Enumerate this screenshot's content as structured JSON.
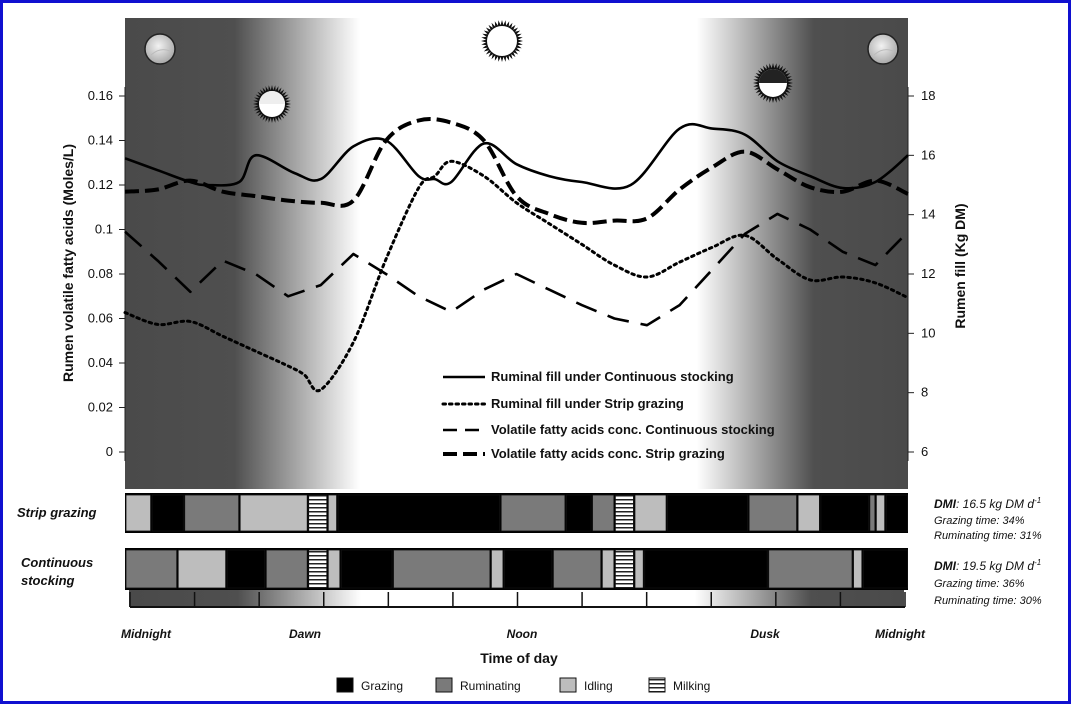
{
  "chart_data": {
    "type": "line",
    "x_axis": {
      "label": "Time of day",
      "ticks": [
        "Midnight",
        "Dawn",
        "Noon",
        "Dusk",
        "Midnight"
      ],
      "range": [
        0,
        24
      ]
    },
    "y_axis_left": {
      "label": "Rumen volatile fatty acids (Moles/L)",
      "ticks": [
        "0.16",
        "0.14",
        "0.12",
        "0.1",
        "0.08",
        "0.06",
        "0.04",
        "0.02",
        "0"
      ],
      "range": [
        0,
        0.16
      ]
    },
    "y_axis_right": {
      "label": "Rumen fill (Kg DM)",
      "ticks": [
        "18",
        "16",
        "14",
        "12",
        "10",
        "8",
        "6"
      ],
      "range": [
        6,
        18
      ]
    },
    "series": [
      {
        "name": "Ruminal fill under  Continuous stocking",
        "axis": "right",
        "style": "solid",
        "x": [
          0,
          1,
          2,
          2.5,
          3.5,
          4,
          5.2,
          6,
          7,
          8,
          9,
          9.5,
          10,
          11,
          12,
          13,
          14,
          15.5,
          17,
          18,
          19,
          20,
          21,
          22,
          23,
          24
        ],
        "y": [
          15.9,
          15.5,
          15.1,
          15,
          15.1,
          16,
          15.4,
          15.2,
          16.3,
          16.5,
          15.3,
          15.2,
          15.1,
          16.4,
          15.7,
          15.3,
          15.1,
          15,
          16.9,
          16.9,
          16.7,
          15.8,
          15.3,
          14.9,
          15.1,
          16.0
        ]
      },
      {
        "name": "Ruminal fill under  Strip grazing",
        "axis": "right",
        "style": "dotted",
        "x": [
          0,
          1,
          2,
          3,
          4,
          5,
          5.5,
          6,
          7,
          8,
          9,
          9.5,
          10,
          11,
          12,
          13,
          14,
          15,
          16,
          17,
          18,
          19,
          20,
          21,
          22,
          23,
          24
        ],
        "y": [
          10.7,
          10.3,
          10.4,
          9.9,
          9.4,
          8.9,
          8.6,
          8.1,
          9.7,
          12.5,
          14.9,
          15.3,
          15.8,
          15.3,
          14.4,
          13.7,
          13.0,
          12.3,
          11.9,
          12.4,
          12.9,
          13.3,
          12.5,
          11.8,
          11.9,
          11.7,
          11.2
        ]
      },
      {
        "name": "Volatile fatty acids conc. Continuous stocking",
        "axis": "left",
        "style": "long-dash",
        "x": [
          0,
          1,
          2,
          3,
          4,
          5,
          6,
          7,
          8,
          9,
          10,
          11,
          12,
          13,
          14,
          15,
          16,
          17,
          18,
          19,
          20,
          21,
          22,
          23,
          24
        ],
        "y": [
          0.099,
          0.086,
          0.072,
          0.086,
          0.08,
          0.07,
          0.075,
          0.089,
          0.08,
          0.07,
          0.063,
          0.073,
          0.08,
          0.073,
          0.066,
          0.06,
          0.057,
          0.066,
          0.082,
          0.098,
          0.107,
          0.1,
          0.09,
          0.084,
          0.099
        ]
      },
      {
        "name": "Volatile fatty acids conc. Strip grazing",
        "axis": "left",
        "style": "short-dash",
        "x": [
          0,
          1,
          2,
          3,
          4,
          5,
          6,
          7,
          8,
          9,
          10,
          11,
          12,
          13,
          14,
          15,
          16,
          17,
          18,
          19,
          20,
          21,
          22,
          23,
          24
        ],
        "y": [
          0.117,
          0.118,
          0.122,
          0.117,
          0.115,
          0.113,
          0.112,
          0.113,
          0.14,
          0.149,
          0.148,
          0.14,
          0.115,
          0.107,
          0.103,
          0.104,
          0.105,
          0.118,
          0.128,
          0.135,
          0.127,
          0.119,
          0.117,
          0.122,
          0.116
        ]
      }
    ],
    "activity_bars": [
      {
        "label": "Strip grazing",
        "info": {
          "dmi_label": "DMI",
          "dmi_value": ": 16.5 kg DM d",
          "dmi_unit_sup": "-1",
          "grazing": "Grazing time: 34%",
          "ruminating": "Ruminating time: 31%"
        },
        "segments": [
          {
            "a": "Idling",
            "start": 0,
            "end": 0.8
          },
          {
            "a": "Grazing",
            "start": 0.8,
            "end": 1.8
          },
          {
            "a": "Ruminating",
            "start": 1.8,
            "end": 3.5
          },
          {
            "a": "Idling",
            "start": 3.5,
            "end": 5.6
          },
          {
            "a": "Milking",
            "start": 5.6,
            "end": 6.2
          },
          {
            "a": "Idling",
            "start": 6.2,
            "end": 6.5
          },
          {
            "a": "Grazing",
            "start": 6.5,
            "end": 11.5
          },
          {
            "a": "Ruminating",
            "start": 11.5,
            "end": 13.5
          },
          {
            "a": "Grazing",
            "start": 13.5,
            "end": 14.3
          },
          {
            "a": "Ruminating",
            "start": 14.3,
            "end": 15.0
          },
          {
            "a": "Milking",
            "start": 15.0,
            "end": 15.6
          },
          {
            "a": "Idling",
            "start": 15.6,
            "end": 16.6
          },
          {
            "a": "Grazing",
            "start": 16.6,
            "end": 19.1
          },
          {
            "a": "Ruminating",
            "start": 19.1,
            "end": 20.6
          },
          {
            "a": "Idling",
            "start": 20.6,
            "end": 21.3
          },
          {
            "a": "Grazing",
            "start": 21.3,
            "end": 22.8
          },
          {
            "a": "Ruminating",
            "start": 22.8,
            "end": 23.0
          },
          {
            "a": "Idling",
            "start": 23.0,
            "end": 23.3
          },
          {
            "a": "Grazing",
            "start": 23.3,
            "end": 24
          }
        ]
      },
      {
        "label": "Continuous stocking",
        "info": {
          "dmi_label": "DMI",
          "dmi_value": ": 19.5 kg DM d",
          "dmi_unit_sup": "-1",
          "grazing": "Grazing time: 36%",
          "ruminating": "Ruminating time: 30%"
        },
        "segments": [
          {
            "a": "Ruminating",
            "start": 0,
            "end": 1.6
          },
          {
            "a": "Idling",
            "start": 1.6,
            "end": 3.1
          },
          {
            "a": "Grazing",
            "start": 3.1,
            "end": 4.3
          },
          {
            "a": "Ruminating",
            "start": 4.3,
            "end": 5.6
          },
          {
            "a": "Milking",
            "start": 5.6,
            "end": 6.2
          },
          {
            "a": "Idling",
            "start": 6.2,
            "end": 6.6
          },
          {
            "a": "Grazing",
            "start": 6.6,
            "end": 8.2
          },
          {
            "a": "Ruminating",
            "start": 8.2,
            "end": 11.2
          },
          {
            "a": "Idling",
            "start": 11.2,
            "end": 11.6
          },
          {
            "a": "Grazing",
            "start": 11.6,
            "end": 13.1
          },
          {
            "a": "Ruminating",
            "start": 13.1,
            "end": 14.6
          },
          {
            "a": "Idling",
            "start": 14.6,
            "end": 15.0
          },
          {
            "a": "Milking",
            "start": 15.0,
            "end": 15.6
          },
          {
            "a": "Idling",
            "start": 15.6,
            "end": 15.9
          },
          {
            "a": "Grazing",
            "start": 15.9,
            "end": 19.7
          },
          {
            "a": "Ruminating",
            "start": 19.7,
            "end": 22.3
          },
          {
            "a": "Idling",
            "start": 22.3,
            "end": 22.6
          },
          {
            "a": "Grazing",
            "start": 22.6,
            "end": 24
          }
        ]
      }
    ],
    "activity_legend": [
      {
        "name": "Grazing",
        "color": "#000000"
      },
      {
        "name": "Ruminating",
        "color": "#7a7a7a"
      },
      {
        "name": "Idling",
        "color": "#bdbdbd"
      },
      {
        "name": "Milking",
        "pattern": "horizontal-stripes"
      }
    ],
    "background_icons": [
      "moon-icon",
      "sunrise-icon",
      "sun-icon",
      "sunset-icon",
      "moon-icon"
    ]
  }
}
